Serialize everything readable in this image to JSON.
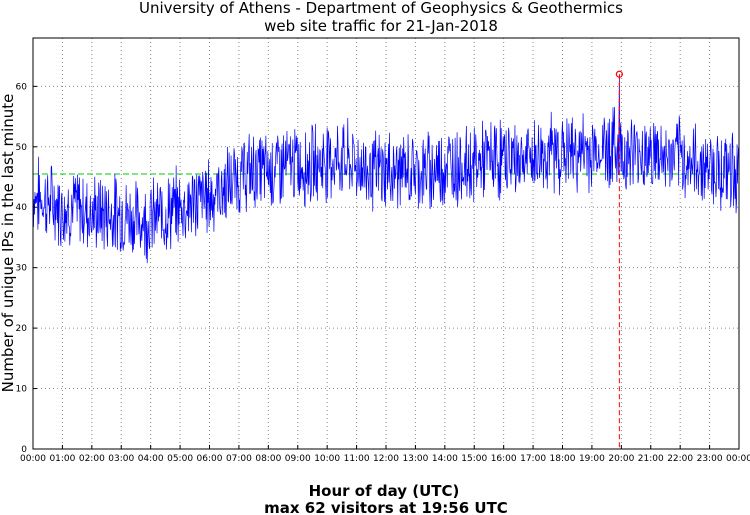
{
  "chart_data": {
    "type": "line",
    "title": "University of Athens - Department of Geophysics & Geothermics",
    "subtitle": "web site traffic for 21-Jan-2018",
    "xlabel": "Hour of day (UTC)",
    "ylabel": "Number of unique IPs in the last minute",
    "annotation": "max 62 visitors at 19:56 UTC",
    "xlim": [
      0,
      24
    ],
    "ylim": [
      0,
      68
    ],
    "grid": true,
    "x_ticks": [
      "00:00",
      "01:00",
      "02:00",
      "03:00",
      "04:00",
      "05:00",
      "06:00",
      "07:00",
      "08:00",
      "09:00",
      "10:00",
      "11:00",
      "12:00",
      "13:00",
      "14:00",
      "15:00",
      "16:00",
      "17:00",
      "18:00",
      "19:00",
      "20:00",
      "21:00",
      "22:00",
      "23:00",
      "00:00"
    ],
    "y_ticks": [
      0,
      10,
      20,
      30,
      40,
      50,
      60
    ],
    "mean_line": 45.5,
    "max": {
      "hour": 19.933,
      "value": 62,
      "label": "19:56"
    },
    "series": [
      {
        "name": "unique IPs per minute",
        "color": "#0000ff",
        "sampling": "1 minute, smoothed hourly level shown",
        "x": [
          0,
          0.5,
          1,
          1.5,
          2,
          2.5,
          3,
          3.5,
          4,
          4.5,
          5,
          5.5,
          6,
          6.5,
          7,
          7.5,
          8,
          8.5,
          9,
          9.5,
          10,
          10.5,
          11,
          11.5,
          12,
          12.5,
          13,
          13.5,
          14,
          14.5,
          15,
          15.5,
          16,
          16.5,
          17,
          17.5,
          18,
          18.5,
          19,
          19.5,
          19.933,
          20,
          20.5,
          21,
          21.5,
          22,
          22.5,
          23,
          23.5,
          24
        ],
        "values": [
          42,
          41,
          40,
          40,
          39,
          39,
          39,
          38,
          38,
          39,
          40,
          41,
          42,
          43,
          45,
          46,
          46,
          47,
          47,
          47,
          48,
          48,
          47,
          46,
          46,
          46,
          46,
          46,
          47,
          47,
          47,
          48,
          48,
          48,
          48,
          49,
          49,
          49,
          49,
          50,
          62,
          49,
          49,
          49,
          48,
          48,
          47,
          47,
          46,
          46
        ]
      }
    ],
    "colors": {
      "line": "#0000ff",
      "mean": "#00cc00",
      "marker": "#ff0000",
      "grid": "#888888"
    }
  }
}
